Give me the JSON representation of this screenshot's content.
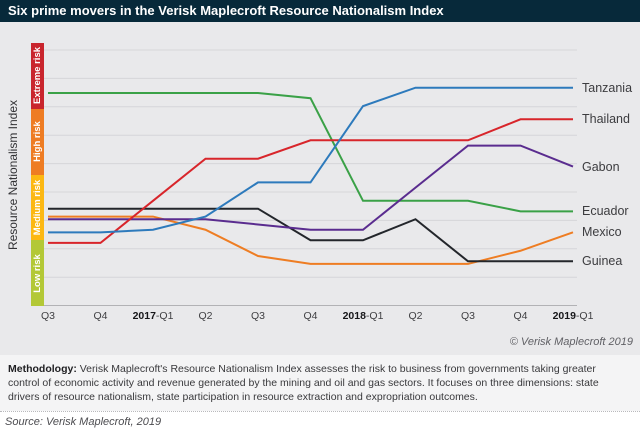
{
  "title": "Six prime movers in the Verisk Maplecroft Resource Nationalism Index",
  "y_axis_title": "Resource Nationalism Index",
  "risk_bands": [
    {
      "label": "Extreme risk",
      "color": "#c9252d"
    },
    {
      "label": "High risk",
      "color": "#ee7c23"
    },
    {
      "label": "Medium risk",
      "color": "#fcb813"
    },
    {
      "label": "Low risk",
      "color": "#b3c836"
    }
  ],
  "chart_data": {
    "type": "line",
    "title": "Six prime movers in the Verisk Maplecroft Resource Nationalism Index",
    "xlabel": "",
    "ylabel": "Resource Nationalism Index",
    "x_labels": [
      {
        "bold": "",
        "text": "Q3"
      },
      {
        "bold": "",
        "text": "Q4"
      },
      {
        "bold": "2017",
        "text": "-Q1"
      },
      {
        "bold": "",
        "text": "Q2"
      },
      {
        "bold": "",
        "text": "Q3"
      },
      {
        "bold": "",
        "text": "Q4"
      },
      {
        "bold": "2018",
        "text": "-Q1"
      },
      {
        "bold": "",
        "text": "Q2"
      },
      {
        "bold": "",
        "text": "Q3"
      },
      {
        "bold": "",
        "text": "Q4"
      },
      {
        "bold": "2019",
        "text": "-Q1"
      }
    ],
    "y_scale": {
      "min": 0,
      "max": 10,
      "orientation": "0 at top (Extreme risk) to 10 at bottom (Low risk)",
      "bands_every": 2.5,
      "grid": "horizontal only"
    },
    "legend_position": "right, at line ends",
    "series": [
      {
        "name": "Ecuador",
        "color": "#3aa147",
        "values": [
          1.9,
          1.9,
          1.9,
          1.9,
          1.9,
          2.1,
          6.0,
          6.0,
          6.0,
          6.4,
          6.4
        ]
      },
      {
        "name": "Mexico",
        "color": "#ee7d23",
        "values": [
          6.6,
          6.6,
          6.6,
          7.1,
          8.1,
          8.4,
          8.4,
          8.4,
          8.4,
          7.9,
          7.2
        ]
      },
      {
        "name": "Guinea",
        "color": "#23262b",
        "values": [
          6.3,
          6.3,
          6.3,
          6.3,
          6.3,
          7.5,
          7.5,
          6.7,
          8.3,
          8.3,
          8.3
        ]
      },
      {
        "name": "Gabon",
        "color": "#5a2c8f",
        "values": [
          6.7,
          6.7,
          6.7,
          6.7,
          6.9,
          7.1,
          7.1,
          5.5,
          3.9,
          3.9,
          4.7
        ]
      },
      {
        "name": "Thailand",
        "color": "#d8252b",
        "values": [
          7.6,
          7.6,
          6.0,
          4.4,
          4.4,
          3.7,
          3.7,
          3.7,
          3.7,
          2.9,
          2.9
        ]
      },
      {
        "name": "Tanzania",
        "color": "#2d7abc",
        "values": [
          7.2,
          7.2,
          7.1,
          6.6,
          5.3,
          5.3,
          2.4,
          1.7,
          1.7,
          1.7,
          1.7
        ]
      }
    ]
  },
  "copyright": "© Verisk Maplecroft 2019",
  "methodology": {
    "label": "Methodology:",
    "text": " Verisk Maplecroft's Resource Nationalism Index assesses the risk to business from governments taking greater control of economic activity and revenue generated by the mining and oil and gas sectors. It focuses on three dimensions: state drivers of resource nationalism, state participation in resource extraction and expropriation outcomes."
  },
  "source": "Source: Verisk Maplecroft, 2019"
}
